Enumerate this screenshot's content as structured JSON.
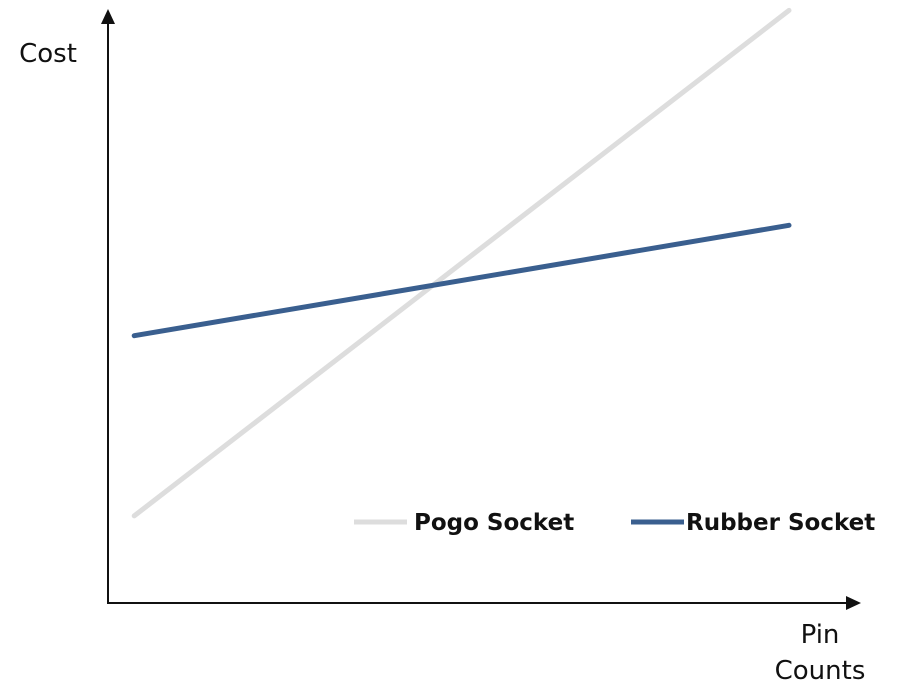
{
  "chart_data": {
    "type": "line",
    "title": "",
    "ylabel": "Cost",
    "xlabel_lines": [
      "Pin",
      "Counts"
    ],
    "x": [
      0,
      1
    ],
    "xlim": [
      -0.04,
      1.11
    ],
    "ylim": [
      0,
      10
    ],
    "grid": false,
    "legend_position": "bottom-right",
    "series": [
      {
        "name": "Pogo Socket",
        "color": "#dddddd",
        "values": [
          1.5,
          10.2
        ]
      },
      {
        "name": "Rubber Socket",
        "color": "#3a5f8f",
        "values": [
          4.6,
          6.5
        ]
      }
    ]
  }
}
